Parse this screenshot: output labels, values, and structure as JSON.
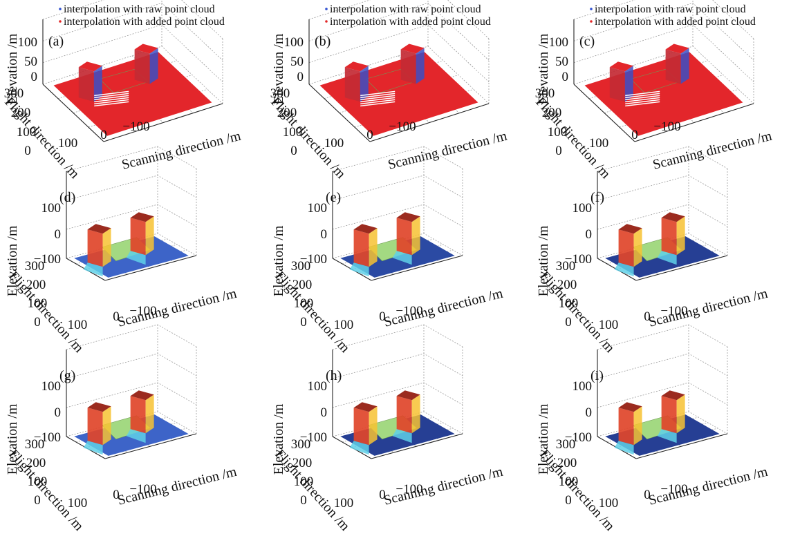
{
  "figure": {
    "description_ref": "3x3 grid of 3D surface plots"
  },
  "chart_data": [
    {
      "type": "scatter3d",
      "panel_label": "(a)",
      "legend": [
        "interpolation with raw point cloud",
        "interpolation with added point cloud"
      ],
      "legend_colors": [
        "#2f4fd0",
        "#e22828"
      ],
      "zlabel": "Elevation /m",
      "ylabel": "Flight direction /m",
      "xlabel": "Scanning direction /m",
      "zticks": [
        "100",
        "50",
        "0"
      ],
      "yticks": [
        "300",
        "200",
        "100",
        "0"
      ],
      "xticks": [
        "100",
        "0",
        "−100"
      ],
      "zlim": [
        0,
        120
      ],
      "ylim": [
        0,
        300
      ],
      "xlim": [
        -150,
        150
      ],
      "surface_color": "#e3262b"
    },
    {
      "type": "scatter3d",
      "panel_label": "(b)",
      "legend": [
        "interpolation with raw point cloud",
        "interpolation with added point cloud"
      ],
      "legend_colors": [
        "#2f4fd0",
        "#e22828"
      ],
      "zlabel": "Elevation /m",
      "ylabel": "Flight direction /m",
      "xlabel": "Scanning direction /m",
      "zticks": [
        "100",
        "50",
        "0"
      ],
      "yticks": [
        "300",
        "200",
        "100",
        "0"
      ],
      "xticks": [
        "100",
        "0",
        "−100"
      ],
      "zlim": [
        0,
        120
      ],
      "ylim": [
        0,
        300
      ],
      "xlim": [
        -150,
        150
      ],
      "surface_color": "#e3262b"
    },
    {
      "type": "scatter3d",
      "panel_label": "(c)",
      "legend": [
        "interpolation with raw point cloud",
        "interpolation with added point cloud"
      ],
      "legend_colors": [
        "#2f4fd0",
        "#e22828"
      ],
      "zlabel": "Elevation /m",
      "ylabel": "Flight direction /m",
      "xlabel": "Scanning direction /m",
      "zticks": [
        "100",
        "50",
        "0"
      ],
      "yticks": [
        "300",
        "200",
        "100",
        "0"
      ],
      "xticks": [
        "100",
        "0",
        "−100"
      ],
      "zlim": [
        0,
        120
      ],
      "ylim": [
        0,
        300
      ],
      "xlim": [
        -150,
        150
      ],
      "surface_color": "#e3262b"
    },
    {
      "type": "surface3d",
      "panel_label": "(d)",
      "zlabel": "Elevation /m",
      "ylabel": "Flight direction /m",
      "xlabel": "Scanning direction /m",
      "zticks": [
        "100",
        "0",
        "−100"
      ],
      "yticks": [
        "300",
        "200",
        "100",
        "0"
      ],
      "xticks": [
        "100",
        "0",
        "−100"
      ],
      "zlim": [
        -100,
        150
      ],
      "ylim": [
        0,
        350
      ],
      "xlim": [
        -150,
        150
      ],
      "ground_color": "#3d64c8",
      "roof_color": "#a3d982"
    },
    {
      "type": "surface3d",
      "panel_label": "(e)",
      "zlabel": "Elevation /m",
      "ylabel": "Flight direction /m",
      "xlabel": "Scanning direction /m",
      "zticks": [
        "100",
        "0",
        "−100"
      ],
      "yticks": [
        "300",
        "200",
        "100",
        "0"
      ],
      "xticks": [
        "100",
        "0",
        "−100"
      ],
      "zlim": [
        -100,
        150
      ],
      "ylim": [
        0,
        350
      ],
      "xlim": [
        -150,
        150
      ],
      "ground_color": "#2b4aa3",
      "roof_color": "#a3d982"
    },
    {
      "type": "surface3d",
      "panel_label": "(f)",
      "zlabel": "Elevation /m",
      "ylabel": "Flight direction /m",
      "xlabel": "Scanning direction /m",
      "zticks": [
        "100",
        "0",
        "−100"
      ],
      "yticks": [
        "300",
        "200",
        "100",
        "0"
      ],
      "xticks": [
        "100",
        "0",
        "−100"
      ],
      "zlim": [
        -100,
        150
      ],
      "ylim": [
        0,
        350
      ],
      "xlim": [
        -150,
        150
      ],
      "ground_color": "#263f94",
      "roof_color": "#a3d982"
    },
    {
      "type": "surface3d",
      "panel_label": "(g)",
      "zlabel": "Elevation /m",
      "ylabel": "Flight direction /m",
      "xlabel": "Scanning direction /m",
      "zticks": [
        "100",
        "0",
        "−100"
      ],
      "yticks": [
        "300",
        "200",
        "100",
        "0"
      ],
      "xticks": [
        "100",
        "0",
        "−100"
      ],
      "zlim": [
        -100,
        150
      ],
      "ylim": [
        0,
        350
      ],
      "xlim": [
        -150,
        150
      ],
      "ground_color": "#3d64c8",
      "roof_color": "#a3d982"
    },
    {
      "type": "surface3d",
      "panel_label": "(h)",
      "zlabel": "Elevation /m",
      "ylabel": "Flight direction /m",
      "xlabel": "Scanning direction /m",
      "zticks": [
        "100",
        "0",
        "−100"
      ],
      "yticks": [
        "300",
        "200",
        "100",
        "0"
      ],
      "xticks": [
        "100",
        "0",
        "−100"
      ],
      "zlim": [
        -100,
        150
      ],
      "ylim": [
        0,
        350
      ],
      "xlim": [
        -150,
        150
      ],
      "ground_color": "#263f94",
      "roof_color": "#a3d982"
    },
    {
      "type": "surface3d",
      "panel_label": "(i)",
      "zlabel": "Elevation /m",
      "ylabel": "Flight direction /m",
      "xlabel": "Scanning direction /m",
      "zticks": [
        "100",
        "0",
        "−100"
      ],
      "yticks": [
        "300",
        "200",
        "100",
        "0"
      ],
      "xticks": [
        "100",
        "0",
        "−100"
      ],
      "zlim": [
        -100,
        150
      ],
      "ylim": [
        0,
        350
      ],
      "xlim": [
        -150,
        150
      ],
      "ground_color": "#263f94",
      "roof_color": "#a3d982"
    }
  ]
}
